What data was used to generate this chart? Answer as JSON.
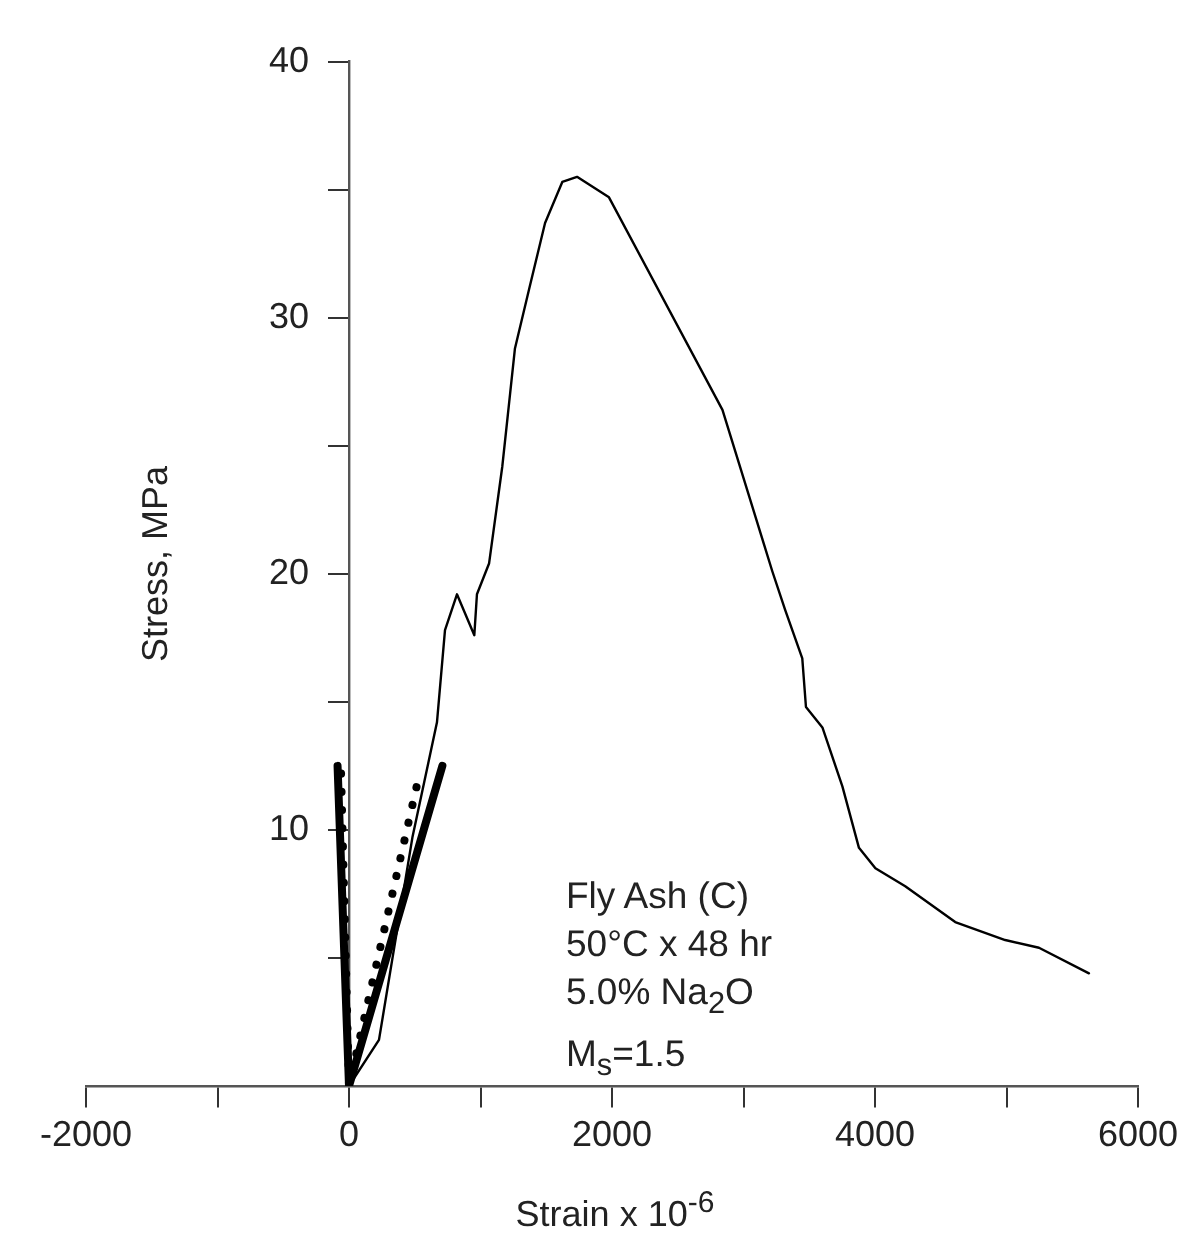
{
  "chart_data": {
    "type": "line",
    "xlabel": "Strain x 10$^{-6}$",
    "ylabel": "Stress, MPa",
    "xlim": [
      -2000,
      6000
    ],
    "xticks": [
      -2000,
      {
        "value": -1000,
        "label": null
      },
      0,
      {
        "value": 1000,
        "label": null
      },
      2000,
      {
        "value": 3000,
        "label": null
      },
      4000,
      {
        "value": 5000,
        "label": null
      },
      6000
    ],
    "ylim": [
      0,
      40
    ],
    "yticks": [
      {
        "value": 0,
        "label": null
      },
      {
        "value": 5,
        "label": null
      },
      10,
      {
        "value": 15,
        "label": null
      },
      20,
      {
        "value": 25,
        "label": null
      },
      30,
      {
        "value": 35,
        "label": null
      },
      40
    ],
    "series": [
      {
        "color": "#000000",
        "line_style": "solid",
        "x": [
          0,
          228,
          482,
          669,
          730,
          821,
          953,
          973,
          1065,
          1166,
          1262,
          1369,
          1491,
          1622,
          1734,
          1977,
          2840,
          3219,
          3316,
          3447,
          3475,
          3600,
          3752,
          3878,
          4003,
          4230,
          4610,
          4990,
          5247,
          5627
        ],
        "values": [
          0,
          1.8,
          9.7,
          14.2,
          17.8,
          19.2,
          17.6,
          19.2,
          20.4,
          24.2,
          28.8,
          31.1,
          33.7,
          35.3,
          35.5,
          34.7,
          26.4,
          20.1,
          18.6,
          16.7,
          14.8,
          14.0,
          11.7,
          9.3,
          8.5,
          7.8,
          6.4,
          5.7,
          5.4,
          4.4
        ]
      },
      {
        "color": "#000000",
        "line_style": "solid",
        "x": [
          -87,
          0,
          710
        ],
        "values": [
          12.5,
          0,
          12.5
        ]
      },
      {
        "color": "#000000",
        "line_style": "dotted",
        "x": [
          -60,
          0,
          532
        ],
        "values": [
          12.2,
          0,
          12.1
        ]
      }
    ],
    "annotations": [
      "Fly Ash (C)",
      "50°C x 48 hr",
      "5.0% Na$_{2}$O",
      "M$_{s}$=1.5"
    ],
    "grid": false,
    "legend": false,
    "marker": "none"
  }
}
